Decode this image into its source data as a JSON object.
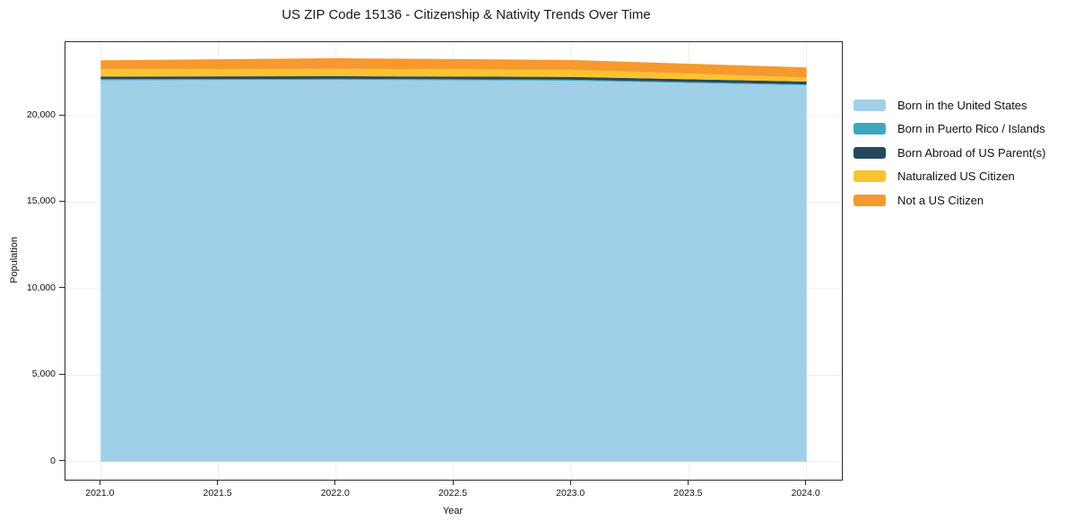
{
  "figure": {
    "background": "#ffffff",
    "frame_color": "#2b2b2b",
    "gridline_color": "#ededed"
  },
  "chart_data": {
    "type": "area",
    "stacked": true,
    "title": "US ZIP Code 15136 - Citizenship & Nativity Trends Over Time",
    "xlabel": "Year",
    "ylabel": "Population",
    "x": [
      2021,
      2022,
      2023,
      2024
    ],
    "series": [
      {
        "name": "Born in the United States",
        "color": "#a0d0e8",
        "values": [
          22050,
          22070,
          22020,
          21760
        ]
      },
      {
        "name": "Born in Puerto Rico / Islands",
        "color": "#3ba8c2",
        "values": [
          60,
          60,
          60,
          50
        ]
      },
      {
        "name": "Born Abroad of US Parent(s)",
        "color": "#26495e",
        "values": [
          150,
          150,
          160,
          160
        ]
      },
      {
        "name": "Naturalized US Citizen",
        "color": "#fcc330",
        "values": [
          420,
          430,
          420,
          230
        ]
      },
      {
        "name": "Not a US Citizen",
        "color": "#f8992d",
        "values": [
          520,
          610,
          560,
          590
        ]
      }
    ],
    "totals": [
      23200,
      23320,
      23220,
      22790
    ],
    "xlim": [
      2020.85,
      2024.15
    ],
    "ylim": [
      -1040,
      24250
    ],
    "xticks": {
      "values": [
        2021.0,
        2021.5,
        2022.0,
        2022.5,
        2023.0,
        2023.5,
        2024.0
      ],
      "labels": [
        "2021.0",
        "2021.5",
        "2022.0",
        "2022.5",
        "2023.0",
        "2023.5",
        "2024.0"
      ]
    },
    "yticks": {
      "values": [
        0,
        5000,
        10000,
        15000,
        20000
      ],
      "labels": [
        "0",
        "5,000",
        "10,000",
        "15,000",
        "20,000"
      ]
    },
    "grid": true,
    "legend_position": "right"
  },
  "legend": {
    "items": [
      {
        "label": "Born in the United States",
        "color": "#a0d0e8"
      },
      {
        "label": "Born in Puerto Rico / Islands",
        "color": "#3ba8c2"
      },
      {
        "label": "Born Abroad of US Parent(s)",
        "color": "#26495e"
      },
      {
        "label": "Naturalized US Citizen",
        "color": "#fcc330"
      },
      {
        "label": "Not a US Citizen",
        "color": "#f8992d"
      }
    ]
  }
}
